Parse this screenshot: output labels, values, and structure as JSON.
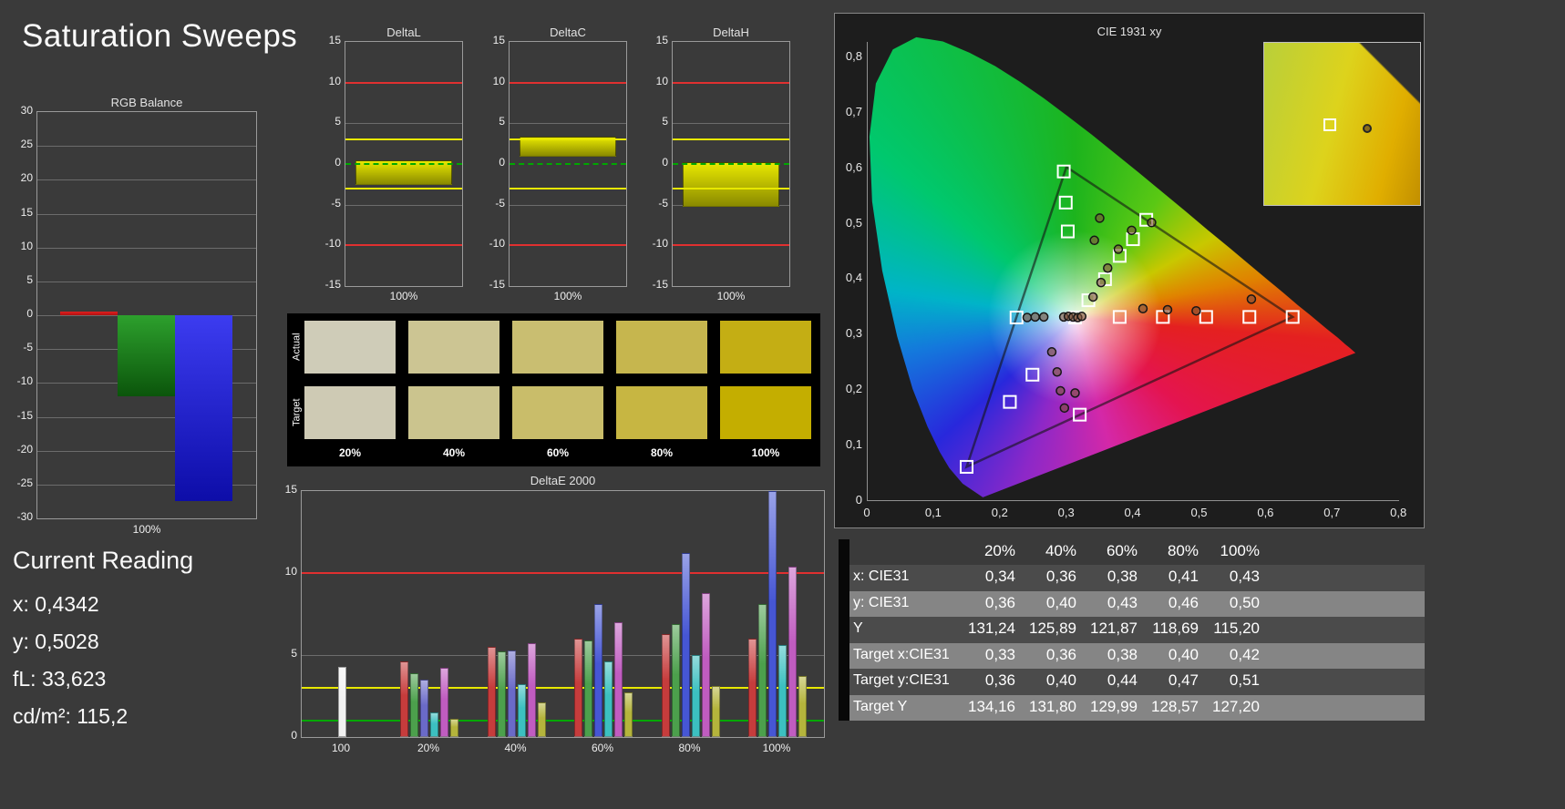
{
  "page": {
    "title": "Saturation Sweeps",
    "background": "#3a3a3a"
  },
  "current_reading": {
    "heading": "Current Reading",
    "lines": [
      "x: 0,4342",
      "y: 0,5028",
      "fL: 33,623",
      "cd/m²: 115,2"
    ]
  },
  "swatches": {
    "row_labels": [
      "Actual",
      "Target"
    ],
    "col_labels": [
      "20%",
      "40%",
      "60%",
      "80%",
      "100%"
    ],
    "actual_colors": [
      "#cfccb8",
      "#ccc593",
      "#c9be71",
      "#c6b64e",
      "#c4ae14"
    ],
    "target_colors": [
      "#cecab4",
      "#cbc48e",
      "#c9bd6a",
      "#c7b642",
      "#c4ae00"
    ]
  },
  "table": {
    "columns": [
      "20%",
      "40%",
      "60%",
      "80%",
      "100%"
    ],
    "rows": [
      {
        "label": "x: CIE31",
        "values": [
          "0,34",
          "0,36",
          "0,38",
          "0,41",
          "0,43"
        ]
      },
      {
        "label": "y: CIE31",
        "values": [
          "0,36",
          "0,40",
          "0,43",
          "0,46",
          "0,50"
        ]
      },
      {
        "label": "Y",
        "values": [
          "131,24",
          "125,89",
          "121,87",
          "118,69",
          "115,20"
        ]
      },
      {
        "label": "Target x:CIE31",
        "values": [
          "0,33",
          "0,36",
          "0,38",
          "0,40",
          "0,42"
        ]
      },
      {
        "label": "Target y:CIE31",
        "values": [
          "0,36",
          "0,40",
          "0,44",
          "0,47",
          "0,51"
        ]
      },
      {
        "label": "Target Y",
        "values": [
          "134,16",
          "131,80",
          "129,99",
          "128,57",
          "127,20"
        ]
      }
    ]
  },
  "chart_data": [
    {
      "id": "rgb_balance",
      "type": "bar",
      "title": "RGB Balance",
      "categories": [
        "100%"
      ],
      "ylim": [
        -30,
        30
      ],
      "ytick_step": 5,
      "grid": true,
      "series": [
        {
          "name": "Red",
          "color": "#e02020",
          "color2": "#b01010",
          "values": [
            0.5
          ]
        },
        {
          "name": "Green",
          "color": "#2da02d",
          "color2": "#0b550b",
          "values": [
            -12
          ]
        },
        {
          "name": "Blue",
          "color": "#3c3cf0",
          "color2": "#0d0da8",
          "values": [
            -27.5
          ]
        }
      ]
    },
    {
      "id": "delta_l",
      "type": "bar",
      "title": "DeltaL",
      "categories": [
        "100%"
      ],
      "ylim": [
        -15,
        15
      ],
      "ytick_step": 5,
      "bar_range": [
        -2.6,
        0.4
      ],
      "bar_color": "#e8e800",
      "bar_color2": "#8a8a00",
      "ref_lines": [
        {
          "value": 10,
          "color": "#e03030"
        },
        {
          "value": -10,
          "color": "#e03030"
        },
        {
          "value": 3,
          "color": "#e8e800"
        },
        {
          "value": -3,
          "color": "#e8e800"
        },
        {
          "value": 0,
          "color": "#00a800",
          "dashed": true
        }
      ]
    },
    {
      "id": "delta_c",
      "type": "bar",
      "title": "DeltaC",
      "categories": [
        "100%"
      ],
      "ylim": [
        -15,
        15
      ],
      "ytick_step": 5,
      "bar_range": [
        0.9,
        3.4
      ],
      "bar_color": "#e8e800",
      "bar_color2": "#8a8a00",
      "ref_lines": [
        {
          "value": 10,
          "color": "#e03030"
        },
        {
          "value": -10,
          "color": "#e03030"
        },
        {
          "value": 3,
          "color": "#e8e800"
        },
        {
          "value": -3,
          "color": "#e8e800"
        },
        {
          "value": 0,
          "color": "#00a800",
          "dashed": true
        }
      ]
    },
    {
      "id": "delta_h",
      "type": "bar",
      "title": "DeltaH",
      "categories": [
        "100%"
      ],
      "ylim": [
        -15,
        15
      ],
      "ytick_step": 5,
      "bar_range": [
        -5.3,
        0.2
      ],
      "bar_color": "#e8e800",
      "bar_color2": "#8a8a00",
      "ref_lines": [
        {
          "value": 10,
          "color": "#e03030"
        },
        {
          "value": -10,
          "color": "#e03030"
        },
        {
          "value": 3,
          "color": "#e8e800"
        },
        {
          "value": -3,
          "color": "#e8e800"
        },
        {
          "value": 0,
          "color": "#00a800",
          "dashed": true
        }
      ]
    },
    {
      "id": "deltae2000",
      "type": "bar",
      "title": "DeltaE 2000",
      "ylim": [
        0,
        15
      ],
      "yticks": [
        0,
        5,
        10,
        15
      ],
      "ref_lines": [
        {
          "value": 10,
          "color": "#e03030"
        },
        {
          "value": 3,
          "color": "#e8e800"
        },
        {
          "value": 1,
          "color": "#00a800"
        }
      ],
      "groups": [
        {
          "label": "100",
          "bars": [
            {
              "color": "#f2f2f2",
              "value": 4.3
            }
          ]
        },
        {
          "label": "20%",
          "bars": [
            {
              "color": "#c63c3c",
              "value": 4.6
            },
            {
              "color": "#4ca04c",
              "value": 3.9
            },
            {
              "color": "#6a6ac8",
              "value": 3.5
            },
            {
              "color": "#3cc0c0",
              "value": 1.5
            },
            {
              "color": "#c05cc0",
              "value": 4.2
            },
            {
              "color": "#b4b43c",
              "value": 1.1
            }
          ]
        },
        {
          "label": "40%",
          "bars": [
            {
              "color": "#c63c3c",
              "value": 5.5
            },
            {
              "color": "#4ca04c",
              "value": 5.2
            },
            {
              "color": "#6a6ac8",
              "value": 5.3
            },
            {
              "color": "#3cc0c0",
              "value": 3.2
            },
            {
              "color": "#c05cc0",
              "value": 5.7
            },
            {
              "color": "#b4b43c",
              "value": 2.1
            }
          ]
        },
        {
          "label": "60%",
          "bars": [
            {
              "color": "#c63c3c",
              "value": 6.0
            },
            {
              "color": "#4ca04c",
              "value": 5.9
            },
            {
              "color": "#4656d4",
              "value": 8.1
            },
            {
              "color": "#3cc0c0",
              "value": 4.6
            },
            {
              "color": "#c05cc0",
              "value": 7.0
            },
            {
              "color": "#b4b43c",
              "value": 2.7
            }
          ]
        },
        {
          "label": "80%",
          "bars": [
            {
              "color": "#c63c3c",
              "value": 6.3
            },
            {
              "color": "#4ca04c",
              "value": 6.9
            },
            {
              "color": "#4656d4",
              "value": 11.2
            },
            {
              "color": "#3cc0c0",
              "value": 5.0
            },
            {
              "color": "#c05cc0",
              "value": 8.8
            },
            {
              "color": "#b4b43c",
              "value": 3.1
            }
          ]
        },
        {
          "label": "100%",
          "bars": [
            {
              "color": "#c63c3c",
              "value": 6.0
            },
            {
              "color": "#4ca04c",
              "value": 8.1
            },
            {
              "color": "#4656d4",
              "value": 15.0
            },
            {
              "color": "#3cc0c0",
              "value": 5.6
            },
            {
              "color": "#c05cc0",
              "value": 10.4
            },
            {
              "color": "#b4b43c",
              "value": 3.7
            }
          ]
        }
      ]
    },
    {
      "id": "cie",
      "type": "scatter",
      "title": "CIE 1931 xy",
      "xlim": [
        0,
        0.8
      ],
      "ylim": [
        0,
        0.8
      ],
      "xtick_labels": [
        "0",
        "0,1",
        "0,2",
        "0,3",
        "0,4",
        "0,5",
        "0,6",
        "0,7",
        "0,8"
      ],
      "ytick_labels": [
        "0",
        "0,1",
        "0,2",
        "0,3",
        "0,4",
        "0,5",
        "0,6",
        "0,7",
        "0,8"
      ],
      "gamut_triangle": [
        [
          0.64,
          0.33
        ],
        [
          0.3,
          0.6
        ],
        [
          0.15,
          0.06
        ]
      ],
      "targets": [
        [
          0.313,
          0.329
        ],
        [
          0.38,
          0.33
        ],
        [
          0.445,
          0.33
        ],
        [
          0.51,
          0.33
        ],
        [
          0.575,
          0.33
        ],
        [
          0.64,
          0.33
        ],
        [
          0.225,
          0.329
        ],
        [
          0.302,
          0.484
        ],
        [
          0.299,
          0.536
        ],
        [
          0.296,
          0.592
        ],
        [
          0.249,
          0.226
        ],
        [
          0.215,
          0.177
        ],
        [
          0.15,
          0.06
        ],
        [
          0.32,
          0.154
        ],
        [
          0.333,
          0.36
        ],
        [
          0.358,
          0.398
        ],
        [
          0.38,
          0.44
        ],
        [
          0.4,
          0.47
        ],
        [
          0.42,
          0.505
        ]
      ],
      "measurements": [
        [
          0.296,
          0.33
        ],
        [
          0.303,
          0.331
        ],
        [
          0.31,
          0.33
        ],
        [
          0.317,
          0.329
        ],
        [
          0.323,
          0.331
        ],
        [
          0.241,
          0.329
        ],
        [
          0.253,
          0.33
        ],
        [
          0.266,
          0.33
        ],
        [
          0.415,
          0.345
        ],
        [
          0.452,
          0.343
        ],
        [
          0.495,
          0.341
        ],
        [
          0.578,
          0.362
        ],
        [
          0.34,
          0.366
        ],
        [
          0.352,
          0.392
        ],
        [
          0.362,
          0.418
        ],
        [
          0.378,
          0.452
        ],
        [
          0.398,
          0.486
        ],
        [
          0.428,
          0.5
        ],
        [
          0.342,
          0.468
        ],
        [
          0.35,
          0.508
        ],
        [
          0.278,
          0.267
        ],
        [
          0.286,
          0.231
        ],
        [
          0.291,
          0.197
        ],
        [
          0.297,
          0.166
        ],
        [
          0.313,
          0.193
        ]
      ],
      "inset": {
        "xrange": [
          0.395,
          0.455
        ],
        "yrange": [
          0.46,
          0.55
        ],
        "target": [
          0.42,
          0.505
        ],
        "measurement": [
          0.4342,
          0.5028
        ]
      }
    }
  ]
}
